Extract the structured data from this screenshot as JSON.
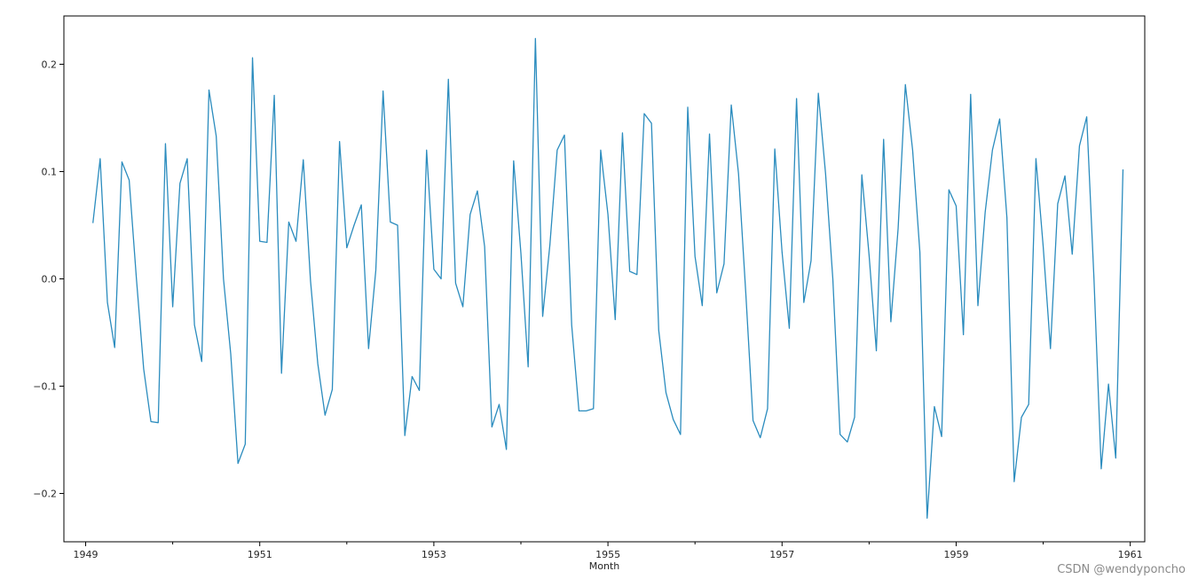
{
  "chart_data": {
    "type": "line",
    "title": "",
    "xlabel": "Month",
    "ylabel": "",
    "x_start": "1949-02",
    "x_end": "1960-12",
    "xlim": [
      "1948-10",
      "1961-03"
    ],
    "ylim": [
      -0.245,
      0.245
    ],
    "x_ticks": [
      "1949",
      "1951",
      "1953",
      "1955",
      "1957",
      "1959",
      "1961"
    ],
    "y_ticks": [
      -0.2,
      -0.1,
      0.0,
      0.1,
      0.2
    ],
    "y_tick_labels": [
      "−0.2",
      "−0.1",
      "0.0",
      "0.1",
      "0.2"
    ],
    "grid": false,
    "legend": "none",
    "line_color": "#2b8cbe",
    "series": [
      {
        "values": [
          0.052,
          0.112,
          -0.022,
          -0.064,
          0.109,
          0.092,
          0.0,
          -0.084,
          -0.133,
          -0.134,
          0.126,
          -0.026,
          0.089,
          0.112,
          -0.043,
          -0.077,
          0.176,
          0.133,
          0.0,
          -0.07,
          -0.172,
          -0.154,
          0.206,
          0.035,
          0.034,
          0.171,
          -0.088,
          0.053,
          0.035,
          0.111,
          -0.002,
          -0.079,
          -0.127,
          -0.103,
          0.128,
          0.029,
          0.05,
          0.069,
          -0.065,
          0.008,
          0.175,
          0.053,
          0.05,
          -0.146,
          -0.091,
          -0.104,
          0.12,
          0.009,
          0.0,
          0.186,
          -0.004,
          -0.026,
          0.06,
          0.082,
          0.03,
          -0.138,
          -0.117,
          -0.159,
          0.11,
          0.024,
          -0.082,
          0.224,
          -0.035,
          0.032,
          0.12,
          0.134,
          -0.043,
          -0.123,
          -0.123,
          -0.121,
          0.12,
          0.06,
          -0.038,
          0.136,
          0.007,
          0.004,
          0.154,
          0.145,
          -0.048,
          -0.106,
          -0.131,
          -0.145,
          0.16,
          0.021,
          -0.025,
          0.135,
          -0.013,
          0.014,
          0.162,
          0.098,
          -0.013,
          -0.132,
          -0.148,
          -0.121,
          0.121,
          0.025,
          -0.046,
          0.168,
          -0.022,
          0.017,
          0.173,
          0.098,
          0.0,
          -0.145,
          -0.152,
          -0.129,
          0.097,
          0.022,
          -0.067,
          0.13,
          -0.04,
          0.047,
          0.181,
          0.12,
          0.025,
          -0.223,
          -0.119,
          -0.147,
          0.083,
          0.068,
          -0.052,
          0.172,
          -0.025,
          0.062,
          0.12,
          0.149,
          0.057,
          -0.189,
          -0.129,
          -0.117,
          0.112,
          0.03,
          -0.065,
          0.07,
          0.096,
          0.023,
          0.124,
          0.151,
          0.0,
          -0.177,
          -0.098,
          -0.167,
          0.102
        ]
      }
    ]
  },
  "watermark": "CSDN @wendyponcho"
}
